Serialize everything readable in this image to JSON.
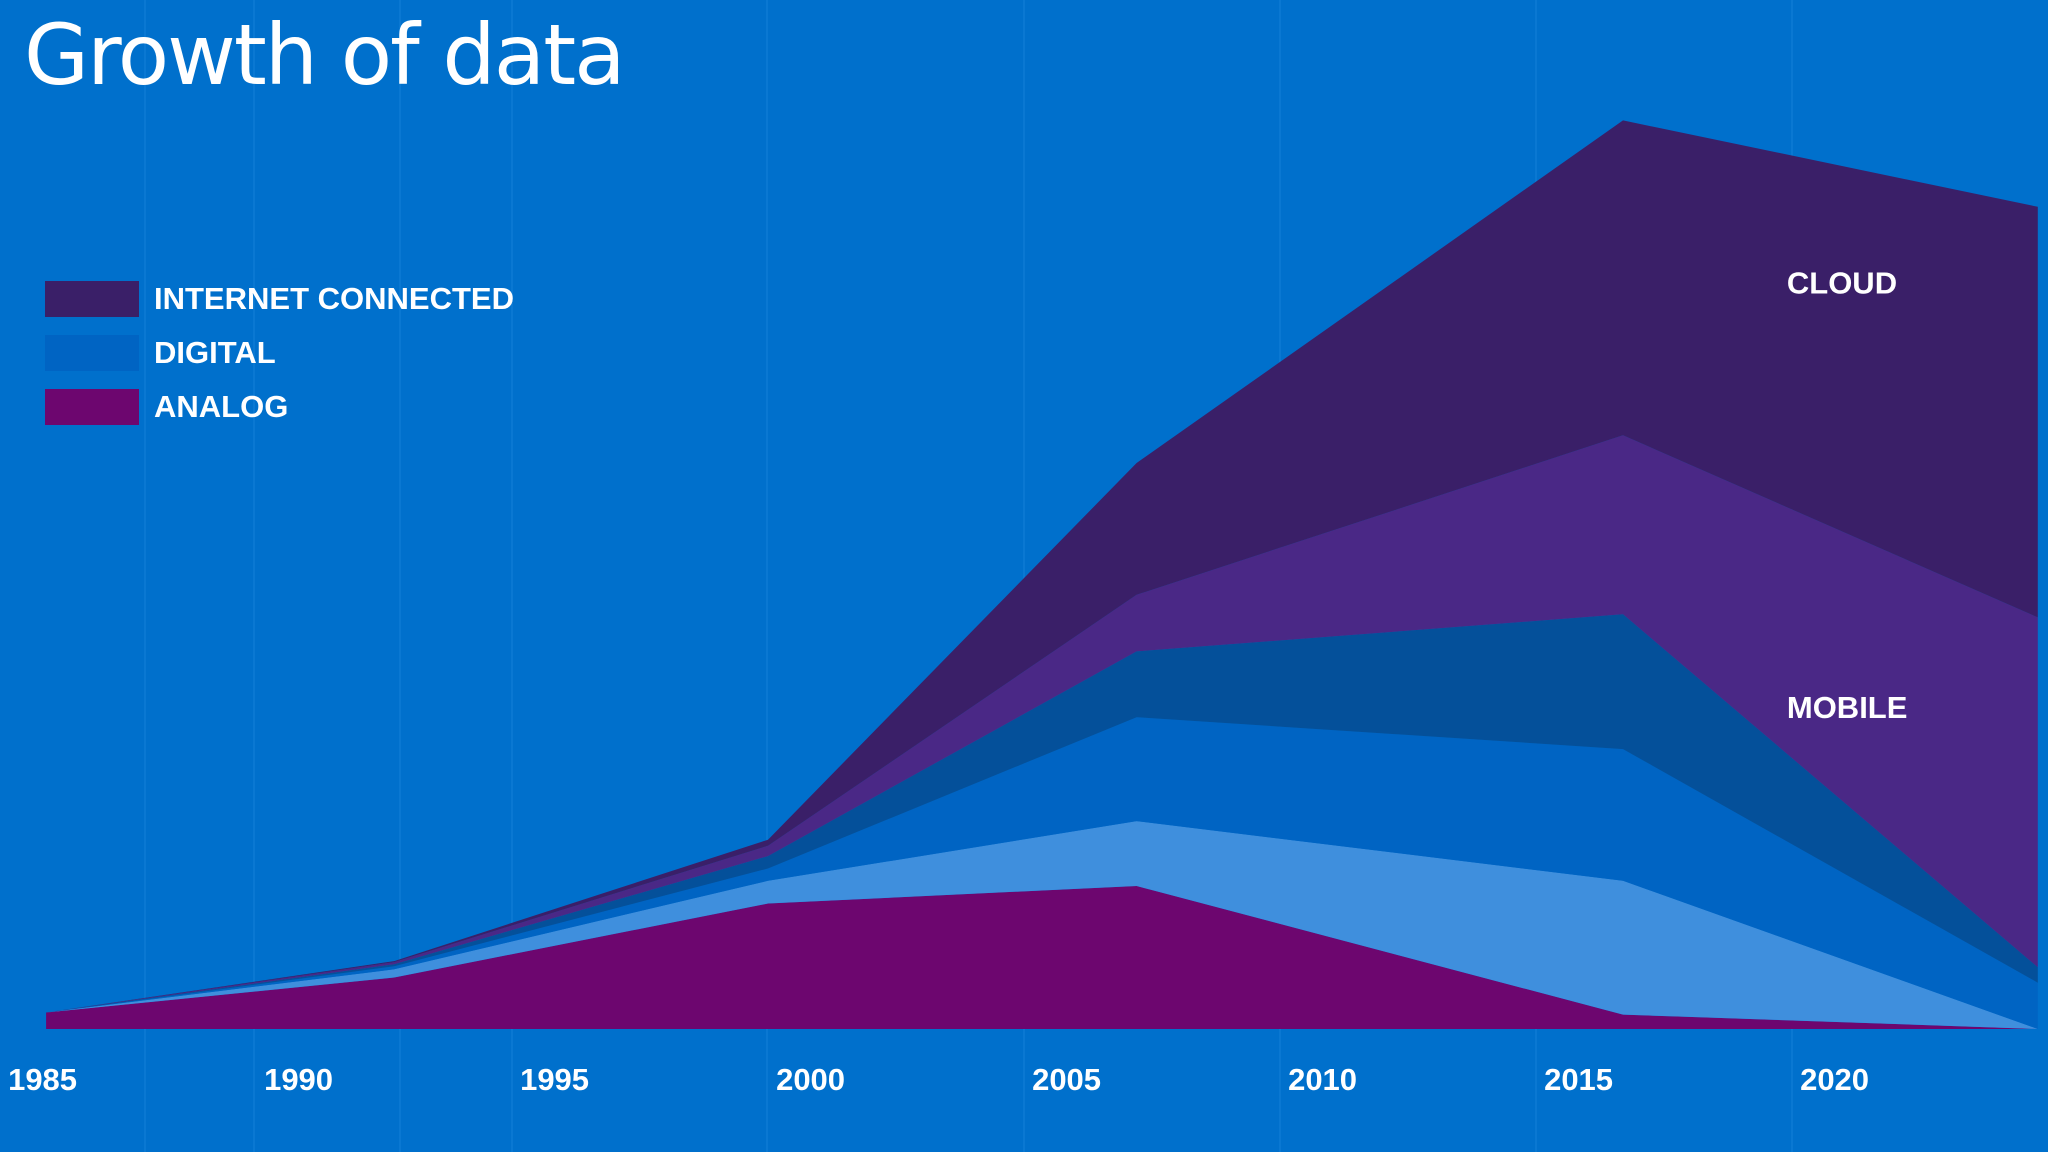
{
  "page": {
    "title": "Growth of data",
    "background_color": "#0070CC"
  },
  "chart_data": {
    "type": "area",
    "title": "Growth of data",
    "xlabel": "",
    "ylabel": "",
    "grid": "vertical lines, subtle",
    "legend_position": "top-left",
    "x": [
      1985,
      1991.8,
      1999.1,
      2006.3,
      2015.8,
      2023.9
    ],
    "x_ticks": [
      1985,
      1990,
      1995,
      2000,
      2005,
      2010,
      2015,
      2020
    ],
    "xlim": [
      1984.1,
      2024.1
    ],
    "ylim": [
      0,
      1000
    ],
    "legend": [
      {
        "label": "INTERNET CONNECTED",
        "color": "#3A1F68"
      },
      {
        "label": "DIGITAL",
        "color": "#0064C3"
      },
      {
        "label": "ANALOG",
        "color": "#6D066F"
      }
    ],
    "series": [
      {
        "name": "ANALOG",
        "color": "#6D066F",
        "values": [
          16,
          50,
          122,
          139,
          14,
          0
        ]
      },
      {
        "name": "DIGITAL (light)",
        "color": "#3F8FDD",
        "values": [
          0,
          8,
          22,
          63,
          130,
          0
        ]
      },
      {
        "name": "DIGITAL (mid)",
        "color": "#0064C3",
        "values": [
          0,
          3,
          12,
          101,
          128,
          45
        ]
      },
      {
        "name": "DIGITAL (dark)",
        "color": "#04509A",
        "values": [
          0,
          2,
          12,
          64,
          131,
          15
        ]
      },
      {
        "name": "MOBILE",
        "color": "#4A2886",
        "values": [
          0,
          2,
          10,
          55,
          174,
          340
        ]
      },
      {
        "name": "CLOUD",
        "color": "#3A1F68",
        "values": [
          0,
          1,
          6,
          128,
          306,
          399
        ]
      }
    ],
    "annotations": [
      {
        "text": "CLOUD",
        "x": 2019.0,
        "y": 715
      },
      {
        "text": "MOBILE",
        "x": 2019.0,
        "y": 302
      }
    ]
  }
}
